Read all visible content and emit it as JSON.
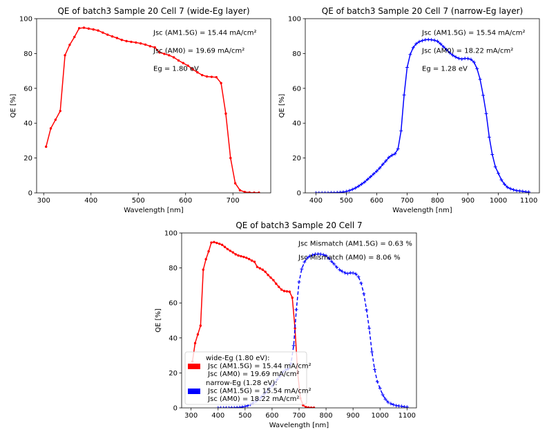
{
  "chart_data": [
    {
      "type": "line",
      "title": "QE of batch3 Sample 20 Cell 7 (wide-Eg layer)",
      "xlabel": "Wavelength [nm]",
      "ylabel": "QE [%]",
      "xlim": [
        285,
        780
      ],
      "ylim": [
        0,
        100
      ],
      "xticks": [
        300,
        400,
        500,
        600,
        700
      ],
      "yticks": [
        0,
        20,
        40,
        60,
        80,
        100
      ],
      "grid": false,
      "annotations": [
        "Jsc (AM1.5G) = 15.44 mA/cm²",
        "Jsc (AM0) = 19.69 mA/cm²",
        "Eg = 1.80 eV"
      ],
      "series": [
        {
          "color": "#ff0000",
          "marker": "dot",
          "linestyle": "solid",
          "x": [
            305,
            315,
            325,
            335,
            345,
            355,
            365,
            375,
            385,
            395,
            405,
            415,
            425,
            435,
            445,
            455,
            465,
            475,
            485,
            495,
            505,
            515,
            525,
            535,
            545,
            555,
            565,
            575,
            585,
            595,
            605,
            615,
            625,
            635,
            645,
            655,
            665,
            675,
            685,
            695,
            705,
            715,
            725,
            735,
            745,
            755
          ],
          "y": [
            26.5,
            37,
            42,
            47,
            79,
            85,
            89.5,
            94.5,
            94.8,
            94.3,
            93.8,
            93.2,
            92,
            90.8,
            89.8,
            88.9,
            87.8,
            87.1,
            86.7,
            86.3,
            85.8,
            85.1,
            84.2,
            83.5,
            80.6,
            79.8,
            79,
            77.8,
            76,
            74.5,
            73,
            71,
            69.2,
            67.6,
            66.8,
            66.6,
            66.4,
            63,
            45.5,
            20,
            5.5,
            1.5,
            0.5,
            0.2,
            0.1,
            0.1
          ]
        }
      ]
    },
    {
      "type": "line",
      "title": "QE of batch3 Sample 20 Cell 7 (narrow-Eg layer)",
      "xlabel": "Wavelength [nm]",
      "ylabel": "QE [%]",
      "xlim": [
        365,
        1135
      ],
      "ylim": [
        0,
        100
      ],
      "xticks": [
        400,
        500,
        600,
        700,
        800,
        900,
        1000,
        1100
      ],
      "yticks": [
        0,
        20,
        40,
        60,
        80,
        100
      ],
      "grid": false,
      "annotations": [
        "Jsc (AM1.5G) = 15.54 mA/cm²",
        "Jsc (AM0) = 18.22 mA/cm²",
        "Eg = 1.28 eV"
      ],
      "series": [
        {
          "color": "#0000ff",
          "marker": "plus",
          "linestyle": "solid",
          "x": [
            400,
            410,
            420,
            430,
            440,
            450,
            460,
            470,
            480,
            490,
            500,
            510,
            520,
            530,
            540,
            550,
            560,
            570,
            580,
            590,
            600,
            610,
            620,
            630,
            640,
            650,
            660,
            670,
            680,
            690,
            700,
            710,
            720,
            730,
            740,
            750,
            760,
            770,
            780,
            790,
            800,
            810,
            820,
            830,
            840,
            850,
            860,
            870,
            880,
            890,
            900,
            910,
            920,
            930,
            940,
            950,
            960,
            970,
            980,
            990,
            1000,
            1010,
            1020,
            1030,
            1040,
            1050,
            1060,
            1070,
            1080,
            1090,
            1100
          ],
          "y": [
            0,
            0,
            0,
            0,
            0,
            0.1,
            0.1,
            0.2,
            0.3,
            0.5,
            0.8,
            1.3,
            2,
            2.8,
            3.8,
            5,
            6.2,
            7.8,
            9.3,
            10.9,
            12.5,
            14.3,
            16.4,
            18.3,
            20.4,
            21.6,
            22.4,
            25.3,
            35.6,
            56.2,
            72,
            79.4,
            83.4,
            85.6,
            86.8,
            87.4,
            87.9,
            88,
            87.9,
            87.6,
            87,
            85.5,
            83.8,
            82.2,
            80.4,
            79,
            78,
            77.2,
            76.8,
            77.2,
            77.1,
            76.6,
            75,
            71.3,
            65.2,
            56,
            45.5,
            32,
            22,
            15,
            11.2,
            7.5,
            5,
            3.2,
            2.4,
            1.8,
            1.3,
            1.1,
            0.9,
            0.6,
            0.5
          ]
        }
      ]
    },
    {
      "type": "line",
      "title": "QE of batch3 Sample 20 Cell 7",
      "xlabel": "Wavelength [nm]",
      "ylabel": "QE [%]",
      "xlim": [
        265,
        1135
      ],
      "ylim": [
        0,
        100
      ],
      "xticks": [
        300,
        400,
        500,
        600,
        700,
        800,
        900,
        1000,
        1100
      ],
      "yticks": [
        0,
        20,
        40,
        60,
        80,
        100
      ],
      "grid": false,
      "annotations": [
        "Jsc Mismatch (AM1.5G) = 0.63 %",
        "Jsc Mismatch (AM0) = 8.06 %"
      ],
      "legend_position": "lower-left",
      "legend": [
        {
          "color": "#ff0000",
          "lines": [
            "wide-Eg (1.80 eV):",
            " Jsc (AM1.5G) = 15.44 mA/cm²",
            " Jsc (AM0) = 19.69 mA/cm²"
          ]
        },
        {
          "color": "#0000ff",
          "lines": [
            "narrow-Eg (1.28 eV):",
            " Jsc (AM1.5G) = 15.54 mA/cm²",
            " Jsc (AM0) = 18.22 mA/cm²"
          ]
        }
      ],
      "series": [
        {
          "ref": 0,
          "color": "#ff0000",
          "marker": "dot",
          "linestyle": "solid"
        },
        {
          "ref": 1,
          "color": "#0000ff",
          "marker": "plus",
          "linestyle": "dashed"
        }
      ]
    }
  ]
}
